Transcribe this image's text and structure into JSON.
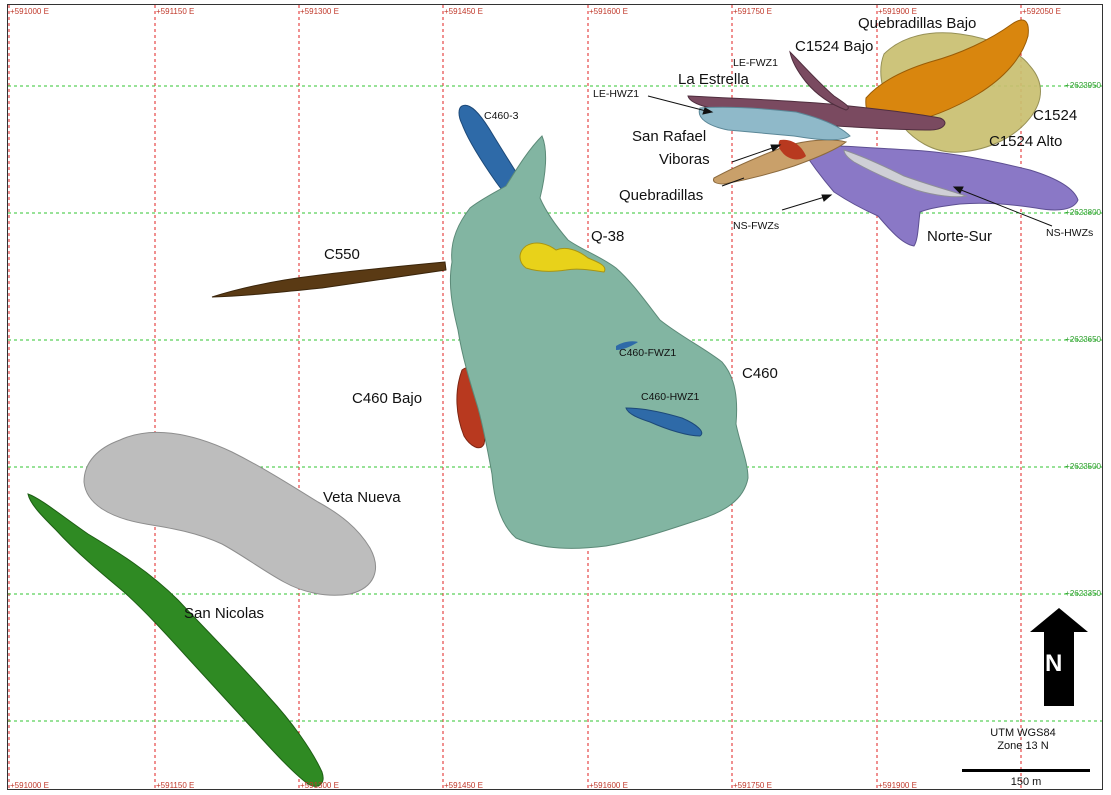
{
  "grid": {
    "easting_labels": [
      "+591000 E",
      "+591150 E",
      "+591300 E",
      "+591450 E",
      "+591600 E",
      "+591750 E",
      "+591900 E",
      "+592050 E"
    ],
    "northing_labels": [
      "+2623950",
      "+2623800",
      "+2623650",
      "+2623500",
      "+2623350"
    ]
  },
  "bodies": [
    {
      "name": "C460",
      "color": "#82b5a2"
    },
    {
      "name": "C460 Bajo",
      "color": "#b8391f"
    },
    {
      "name": "C460-3",
      "color": "#2e6aa8"
    },
    {
      "name": "C460-FWZ1",
      "color": "#2e6aa8"
    },
    {
      "name": "C460-HWZ1",
      "color": "#2e6aa8"
    },
    {
      "name": "Q-38",
      "color": "#e8d21a"
    },
    {
      "name": "C550",
      "color": "#5a3a14"
    },
    {
      "name": "Veta Nueva",
      "color": "#b9b9b9"
    },
    {
      "name": "San Nicolas",
      "color": "#2f8a23"
    },
    {
      "name": "Quebradillas Bajo",
      "color": "#d9860e"
    },
    {
      "name": "C1524",
      "color": "#c9c070"
    },
    {
      "name": "C1524 Bajo",
      "color": "#7a4a60"
    },
    {
      "name": "Norte-Sur",
      "color": "#8a78c6"
    },
    {
      "name": "La Estrella",
      "color": "#8fb9c9"
    }
  ],
  "labels": {
    "quebradillas_bajo": "Quebradillas Bajo",
    "c1524_bajo": "C1524 Bajo",
    "le_fwz1": "LE-FWZ1",
    "la_estrella": "La Estrella",
    "le_hwz1": "LE-HWZ1",
    "c1524": "C1524",
    "c1524_alto": "C1524 Alto",
    "san_rafael": "San Rafael",
    "viboras": "Viboras",
    "quebradillas": "Quebradillas",
    "c460_3": "C460-3",
    "ns_fwzs": "NS-FWZs",
    "ns_hwzs": "NS-HWZs",
    "norte_sur": "Norte-Sur",
    "q38": "Q-38",
    "c550": "C550",
    "c460_fwz1": "C460-FWZ1",
    "c460": "C460",
    "c460_bajo": "C460 Bajo",
    "c460_hwz1": "C460-HWZ1",
    "veta_nueva": "Veta Nueva",
    "san_nicolas": "San Nicolas"
  },
  "legend": {
    "north": "N",
    "crs_line1": "UTM WGS84",
    "crs_line2": "Zone 13 N",
    "scale": "150 m"
  }
}
